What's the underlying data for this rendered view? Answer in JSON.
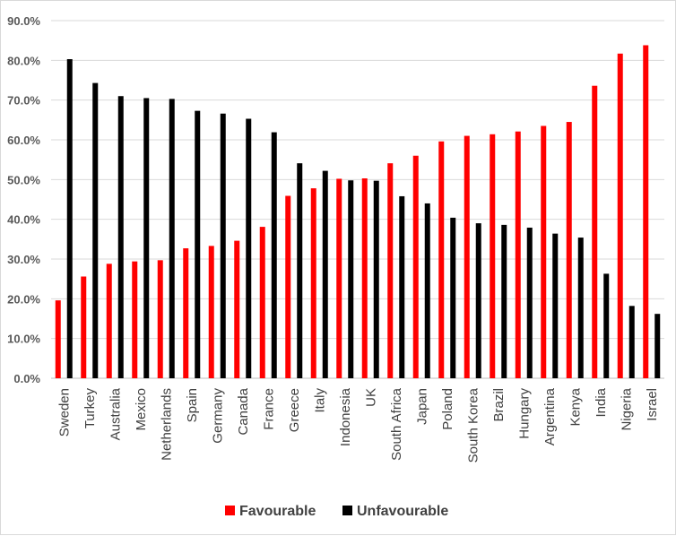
{
  "chart_data": {
    "type": "bar",
    "categories": [
      "Sweden",
      "Turkey",
      "Australia",
      "Mexico",
      "Netherlands",
      "Spain",
      "Germany",
      "Canada",
      "France",
      "Greece",
      "Italy",
      "Indonesia",
      "UK",
      "South Africa",
      "Japan",
      "Poland",
      "South Korea",
      "Brazil",
      "Hungary",
      "Argentina",
      "Kenya",
      "India",
      "Nigeria",
      "Israel"
    ],
    "series": [
      {
        "name": "Favourable",
        "color": "#ff0000",
        "values": [
          19.6,
          25.6,
          28.8,
          29.4,
          29.7,
          32.7,
          33.3,
          34.6,
          38.1,
          45.9,
          47.8,
          50.2,
          50.3,
          54.1,
          56.0,
          59.6,
          61.0,
          61.4,
          62.1,
          63.5,
          64.5,
          73.6,
          81.7,
          83.8
        ]
      },
      {
        "name": "Unfavourable",
        "color": "#000000",
        "values": [
          80.3,
          74.3,
          71.0,
          70.5,
          70.3,
          67.3,
          66.6,
          65.3,
          61.9,
          54.1,
          52.2,
          49.8,
          49.7,
          45.8,
          44.0,
          40.4,
          39.0,
          38.6,
          37.9,
          36.4,
          35.4,
          26.3,
          18.2,
          16.2
        ]
      }
    ],
    "yticks": [
      "0.0%",
      "10.0%",
      "20.0%",
      "30.0%",
      "40.0%",
      "50.0%",
      "60.0%",
      "70.0%",
      "80.0%",
      "90.0%"
    ],
    "ylim": [
      0,
      90
    ],
    "grid": true,
    "legend": "bottom-center"
  }
}
